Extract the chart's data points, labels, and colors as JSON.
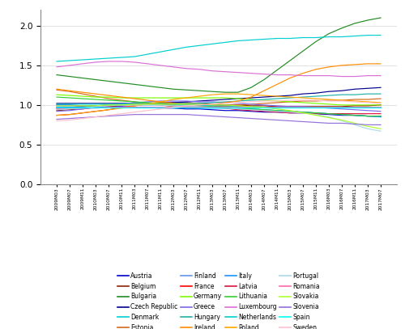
{
  "x_labels": [
    "2009M03",
    "2009M07",
    "2009M11",
    "2010M03",
    "2010M07",
    "2010M11",
    "2011M03",
    "2011M07",
    "2011M11",
    "2012M03",
    "2012M07",
    "2012M11",
    "2013M03",
    "2013M07",
    "2013M11",
    "2014M03",
    "2014M07",
    "2014M11",
    "2015M03",
    "2015M07",
    "2015M11",
    "2016M03",
    "2016M07",
    "2016M11",
    "2017M03",
    "2017M07"
  ],
  "countries": [
    "Austria",
    "Belgium",
    "Bulgaria",
    "Czech Republic",
    "Denmark",
    "Estonia",
    "Finland",
    "France",
    "Germany",
    "Greece",
    "Hungary",
    "Ireland",
    "Italy",
    "Latvia",
    "Lithuania",
    "Luxembourg",
    "Netherlands",
    "Poland",
    "Portugal",
    "Romania",
    "Slovakia",
    "Slovenia",
    "Spain",
    "Sweden"
  ],
  "series": {
    "Austria": [
      1.0,
      1.0,
      0.99,
      0.99,
      0.98,
      0.98,
      0.97,
      0.97,
      0.96,
      0.96,
      0.95,
      0.95,
      0.94,
      0.93,
      0.93,
      0.92,
      0.91,
      0.91,
      0.9,
      0.9,
      0.89,
      0.88,
      0.87,
      0.87,
      0.86,
      0.86
    ],
    "Belgium": [
      0.93,
      0.94,
      0.95,
      0.97,
      0.98,
      1.0,
      1.01,
      1.02,
      1.03,
      1.03,
      1.03,
      1.02,
      1.01,
      1.0,
      1.0,
      0.99,
      0.99,
      0.98,
      0.98,
      0.98,
      0.98,
      0.98,
      0.98,
      0.99,
      0.99,
      1.0
    ],
    "Bulgaria": [
      1.38,
      1.36,
      1.34,
      1.32,
      1.3,
      1.28,
      1.26,
      1.24,
      1.22,
      1.2,
      1.19,
      1.18,
      1.17,
      1.16,
      1.16,
      1.22,
      1.32,
      1.44,
      1.56,
      1.68,
      1.8,
      1.9,
      1.97,
      2.03,
      2.07,
      2.1
    ],
    "Czech Republic": [
      1.02,
      1.02,
      1.02,
      1.02,
      1.02,
      1.02,
      1.02,
      1.02,
      1.02,
      1.03,
      1.04,
      1.05,
      1.06,
      1.07,
      1.08,
      1.09,
      1.1,
      1.11,
      1.12,
      1.14,
      1.15,
      1.17,
      1.18,
      1.2,
      1.21,
      1.22
    ],
    "Denmark": [
      1.55,
      1.56,
      1.57,
      1.58,
      1.59,
      1.6,
      1.61,
      1.64,
      1.67,
      1.7,
      1.73,
      1.75,
      1.77,
      1.79,
      1.81,
      1.82,
      1.83,
      1.84,
      1.84,
      1.85,
      1.85,
      1.86,
      1.86,
      1.87,
      1.88,
      1.88
    ],
    "Estonia": [
      1.19,
      1.17,
      1.14,
      1.11,
      1.08,
      1.06,
      1.04,
      1.02,
      1.0,
      0.98,
      0.97,
      0.97,
      0.98,
      0.99,
      1.0,
      1.01,
      1.02,
      1.03,
      1.04,
      1.05,
      1.05,
      1.06,
      1.06,
      1.07,
      1.07,
      1.08
    ],
    "Finland": [
      0.99,
      0.99,
      0.99,
      0.99,
      1.0,
      1.0,
      1.0,
      1.0,
      1.0,
      0.99,
      0.99,
      0.98,
      0.98,
      0.97,
      0.96,
      0.95,
      0.94,
      0.93,
      0.92,
      0.91,
      0.9,
      0.89,
      0.88,
      0.87,
      0.86,
      0.85
    ],
    "France": [
      0.96,
      0.97,
      0.98,
      0.99,
      1.0,
      1.01,
      1.01,
      1.01,
      1.01,
      1.0,
      1.0,
      1.0,
      0.99,
      0.99,
      0.98,
      0.98,
      0.97,
      0.97,
      0.97,
      0.97,
      0.97,
      0.97,
      0.97,
      0.97,
      0.97,
      0.97
    ],
    "Germany": [
      1.13,
      1.12,
      1.11,
      1.1,
      1.1,
      1.09,
      1.09,
      1.09,
      1.09,
      1.09,
      1.09,
      1.09,
      1.09,
      1.09,
      1.08,
      1.07,
      1.06,
      1.05,
      1.04,
      1.03,
      1.02,
      1.01,
      1.0,
      1.0,
      1.0,
      1.0
    ],
    "Greece": [
      0.92,
      0.93,
      0.95,
      0.97,
      0.99,
      1.01,
      1.03,
      1.04,
      1.05,
      1.05,
      1.05,
      1.04,
      1.04,
      1.03,
      1.02,
      1.01,
      1.0,
      0.99,
      0.98,
      0.98,
      0.97,
      0.96,
      0.95,
      0.94,
      0.93,
      0.92
    ],
    "Hungary": [
      0.97,
      0.97,
      0.98,
      0.99,
      1.0,
      1.01,
      1.02,
      1.02,
      1.02,
      1.02,
      1.02,
      1.02,
      1.03,
      1.04,
      1.05,
      1.06,
      1.07,
      1.08,
      1.09,
      1.1,
      1.11,
      1.12,
      1.13,
      1.13,
      1.14,
      1.14
    ],
    "Ireland": [
      1.2,
      1.18,
      1.16,
      1.14,
      1.12,
      1.1,
      1.08,
      1.06,
      1.04,
      1.02,
      1.01,
      1.0,
      1.01,
      1.03,
      1.05,
      1.1,
      1.18,
      1.26,
      1.34,
      1.4,
      1.45,
      1.48,
      1.5,
      1.51,
      1.52,
      1.52
    ],
    "Italy": [
      0.97,
      0.97,
      0.97,
      0.97,
      0.97,
      0.97,
      0.97,
      0.97,
      0.97,
      0.97,
      0.97,
      0.96,
      0.96,
      0.96,
      0.95,
      0.95,
      0.94,
      0.93,
      0.92,
      0.91,
      0.9,
      0.89,
      0.88,
      0.87,
      0.86,
      0.85
    ],
    "Latvia": [
      0.87,
      0.88,
      0.9,
      0.92,
      0.94,
      0.97,
      0.99,
      1.01,
      1.02,
      1.01,
      1.0,
      0.99,
      0.97,
      0.96,
      0.94,
      0.93,
      0.92,
      0.91,
      0.9,
      0.9,
      0.89,
      0.89,
      0.89,
      0.89,
      0.89,
      0.89
    ],
    "Lithuania": [
      1.1,
      1.09,
      1.08,
      1.07,
      1.06,
      1.05,
      1.04,
      1.03,
      1.02,
      1.01,
      1.0,
      0.99,
      0.98,
      0.97,
      0.96,
      0.95,
      0.94,
      0.93,
      0.92,
      0.91,
      0.9,
      0.89,
      0.88,
      0.87,
      0.86,
      0.86
    ],
    "Luxembourg": [
      1.48,
      1.5,
      1.52,
      1.54,
      1.55,
      1.55,
      1.54,
      1.52,
      1.5,
      1.48,
      1.46,
      1.45,
      1.43,
      1.42,
      1.41,
      1.4,
      1.39,
      1.38,
      1.38,
      1.37,
      1.37,
      1.37,
      1.36,
      1.36,
      1.37,
      1.37
    ],
    "Netherlands": [
      1.01,
      1.01,
      1.01,
      1.01,
      1.01,
      1.01,
      1.01,
      1.01,
      1.01,
      1.01,
      1.0,
      1.0,
      0.99,
      0.99,
      0.98,
      0.98,
      0.97,
      0.97,
      0.97,
      0.97,
      0.97,
      0.97,
      0.97,
      0.97,
      0.97,
      0.97
    ],
    "Poland": [
      0.87,
      0.88,
      0.9,
      0.92,
      0.94,
      0.96,
      0.99,
      1.01,
      1.04,
      1.07,
      1.09,
      1.11,
      1.13,
      1.14,
      1.14,
      1.13,
      1.12,
      1.11,
      1.1,
      1.09,
      1.08,
      1.07,
      1.06,
      1.05,
      1.04,
      1.03
    ],
    "Portugal": [
      0.94,
      0.95,
      0.96,
      0.98,
      0.99,
      1.0,
      1.0,
      1.0,
      1.0,
      0.99,
      0.99,
      0.98,
      0.97,
      0.96,
      0.95,
      0.94,
      0.93,
      0.92,
      0.91,
      0.9,
      0.88,
      0.85,
      0.8,
      0.75,
      0.7,
      0.67
    ],
    "Romania": [
      0.95,
      0.96,
      0.96,
      0.96,
      0.97,
      0.97,
      0.97,
      0.97,
      0.97,
      0.97,
      0.97,
      0.97,
      0.97,
      0.97,
      0.97,
      0.97,
      0.97,
      0.97,
      0.97,
      0.97,
      0.97,
      0.97,
      0.97,
      0.97,
      0.97,
      0.97
    ],
    "Slovakia": [
      0.99,
      0.99,
      0.99,
      0.99,
      1.0,
      1.0,
      1.01,
      1.01,
      1.01,
      1.01,
      1.01,
      1.01,
      1.0,
      1.0,
      0.99,
      0.98,
      0.97,
      0.95,
      0.93,
      0.9,
      0.87,
      0.84,
      0.81,
      0.77,
      0.73,
      0.7
    ],
    "Slovenia": [
      0.82,
      0.83,
      0.84,
      0.85,
      0.86,
      0.87,
      0.88,
      0.88,
      0.88,
      0.88,
      0.88,
      0.87,
      0.86,
      0.85,
      0.84,
      0.83,
      0.82,
      0.81,
      0.8,
      0.79,
      0.78,
      0.77,
      0.77,
      0.76,
      0.75,
      0.75
    ],
    "Spain": [
      0.97,
      0.97,
      0.97,
      0.97,
      0.97,
      0.97,
      0.97,
      0.97,
      0.97,
      0.97,
      0.97,
      0.97,
      0.97,
      0.97,
      0.97,
      0.97,
      0.97,
      0.97,
      0.97,
      0.97,
      0.97,
      0.97,
      0.97,
      0.97,
      0.97,
      0.97
    ],
    "Sweden": [
      0.8,
      0.81,
      0.83,
      0.85,
      0.87,
      0.89,
      0.91,
      0.93,
      0.95,
      0.97,
      0.99,
      1.0,
      1.01,
      1.02,
      1.03,
      1.04,
      1.05,
      1.05,
      1.06,
      1.06,
      1.06,
      1.05,
      1.05,
      1.04,
      1.03,
      1.02
    ]
  },
  "legend_entries": [
    [
      "Austria",
      "#0000CD"
    ],
    [
      "Belgium",
      "#8B2500"
    ],
    [
      "Bulgaria",
      "#228B22"
    ],
    [
      "Czech Republic",
      "#00008B"
    ],
    [
      "Denmark",
      "#00CED1"
    ],
    [
      "Estonia",
      "#D2691E"
    ],
    [
      "Finland",
      "#6495ED"
    ],
    [
      "France",
      "#FF0000"
    ],
    [
      "Germany",
      "#7CFC00"
    ],
    [
      "Greece",
      "#7B68EE"
    ],
    [
      "Hungary",
      "#20B2AA"
    ],
    [
      "Ireland",
      "#FF8C00"
    ],
    [
      "Italy",
      "#1E90FF"
    ],
    [
      "Latvia",
      "#DC143C"
    ],
    [
      "Lithuania",
      "#32CD32"
    ],
    [
      "Luxembourg",
      "#DA70D6"
    ],
    [
      "Netherlands",
      "#00CED1"
    ],
    [
      "Poland",
      "#FFA500"
    ],
    [
      "Portugal",
      "#ADD8E6"
    ],
    [
      "Romania",
      "#FF69B4"
    ],
    [
      "Slovakia",
      "#ADFF2F"
    ],
    [
      "Slovenia",
      "#9370DB"
    ],
    [
      "Spain",
      "#00FFFF"
    ],
    [
      "Sweden",
      "#FFC0CB"
    ]
  ],
  "ylim": [
    0,
    2.2
  ],
  "yticks": [
    0,
    0.5,
    1.0,
    1.5,
    2.0
  ]
}
